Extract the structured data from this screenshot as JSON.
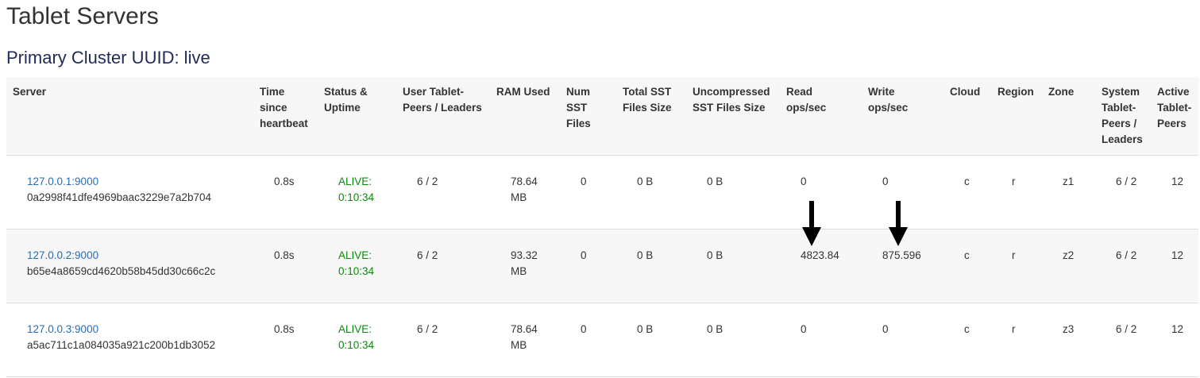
{
  "title": "Tablet Servers",
  "subtitle": "Primary Cluster UUID: live",
  "columns": [
    "Server",
    "Time since heartbeat",
    "Status & Uptime",
    "User Tablet-Peers / Leaders",
    "RAM Used",
    "Num SST Files",
    "Total SST Files Size",
    "Uncompressed SST Files Size",
    "Read ops/sec",
    "Write ops/sec",
    "Cloud",
    "Region",
    "Zone",
    "System Tablet-Peers / Leaders",
    "Active Tablet-Peers"
  ],
  "rows": [
    {
      "address": "127.0.0.1:9000",
      "uuid": "0a2998f41dfe4969baac3229e7a2b704",
      "heartbeat": "0.8s",
      "status": "ALIVE:",
      "uptime": "0:10:34",
      "user_tablets": "6 / 2",
      "ram": "78.64 MB",
      "num_sst": "0",
      "total_sst": "0 B",
      "uncompressed_sst": "0 B",
      "read_ops": "0",
      "write_ops": "0",
      "cloud": "c",
      "region": "r",
      "zone": "z1",
      "system_tablets": "6 / 2",
      "active_peers": "12"
    },
    {
      "address": "127.0.0.2:9000",
      "uuid": "b65e4a8659cd4620b58b45dd30c66c2c",
      "heartbeat": "0.8s",
      "status": "ALIVE:",
      "uptime": "0:10:34",
      "user_tablets": "6 / 2",
      "ram": "93.32 MB",
      "num_sst": "0",
      "total_sst": "0 B",
      "uncompressed_sst": "0 B",
      "read_ops": "4823.84",
      "write_ops": "875.596",
      "cloud": "c",
      "region": "r",
      "zone": "z2",
      "system_tablets": "6 / 2",
      "active_peers": "12"
    },
    {
      "address": "127.0.0.3:9000",
      "uuid": "a5ac711c1a084035a921c200b1db3052",
      "heartbeat": "0.8s",
      "status": "ALIVE:",
      "uptime": "0:10:34",
      "user_tablets": "6 / 2",
      "ram": "78.64 MB",
      "num_sst": "0",
      "total_sst": "0 B",
      "uncompressed_sst": "0 B",
      "read_ops": "0",
      "write_ops": "0",
      "cloud": "c",
      "region": "r",
      "zone": "z3",
      "system_tablets": "6 / 2",
      "active_peers": "12"
    }
  ],
  "colors": {
    "link": "#2a6cb3",
    "alive": "#0a8a0a",
    "heading": "#1f2a5a"
  }
}
